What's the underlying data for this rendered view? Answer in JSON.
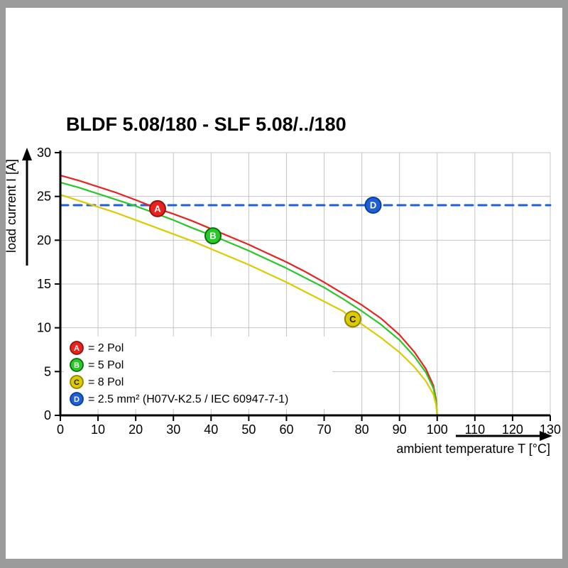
{
  "title": "BLDF 5.08/180 - SLF 5.08/../180",
  "axes": {
    "x": {
      "label": "ambient temperature T [°C]",
      "ticks": [
        0,
        10,
        20,
        30,
        40,
        50,
        60,
        70,
        80,
        90,
        100,
        110,
        120,
        130
      ]
    },
    "y": {
      "label": "load current I [A]",
      "ticks": [
        0,
        5,
        10,
        15,
        20,
        25,
        30
      ]
    }
  },
  "colors": {
    "grid": "#c4c4c4",
    "axis": "#000000",
    "page": "#ffffff",
    "frame": "#9b9b9b",
    "legend_bg": "#ffffff"
  },
  "chart_data": {
    "type": "line",
    "title": "BLDF 5.08/180 - SLF 5.08/../180",
    "xlabel": "ambient temperature T [°C]",
    "ylabel": "load current I [A]",
    "xlim": [
      0,
      130
    ],
    "ylim": [
      0,
      30
    ],
    "grid": true,
    "legend_position": "bottom-left-inside",
    "series": [
      {
        "key": "A",
        "name": "2 Pol",
        "legend_text": "= 2 Pol",
        "color": "#e8231f",
        "ring": "#8f1410",
        "letter_color": "#ffffff",
        "style": "solid",
        "points": [
          [
            0,
            27.4
          ],
          [
            5,
            26.8
          ],
          [
            10,
            26.1
          ],
          [
            15,
            25.4
          ],
          [
            20,
            24.6
          ],
          [
            25.8,
            23.6
          ],
          [
            30,
            23.0
          ],
          [
            35,
            22.2
          ],
          [
            40,
            21.3
          ],
          [
            45,
            20.4
          ],
          [
            50,
            19.5
          ],
          [
            55,
            18.5
          ],
          [
            60,
            17.5
          ],
          [
            65,
            16.4
          ],
          [
            70,
            15.2
          ],
          [
            75,
            13.9
          ],
          [
            80,
            12.6
          ],
          [
            85,
            11.1
          ],
          [
            90,
            9.2
          ],
          [
            94,
            7.2
          ],
          [
            97,
            5.3
          ],
          [
            99,
            3.4
          ],
          [
            99.7,
            1.8
          ],
          [
            100,
            0
          ]
        ]
      },
      {
        "key": "B",
        "name": "5 Pol",
        "legend_text": "= 5 Pol",
        "color": "#28c828",
        "ring": "#0c6e0c",
        "letter_color": "#ffffff",
        "style": "solid",
        "points": [
          [
            0,
            26.6
          ],
          [
            5,
            26.0
          ],
          [
            10,
            25.3
          ],
          [
            15,
            24.6
          ],
          [
            20,
            23.9
          ],
          [
            25,
            23.1
          ],
          [
            30,
            22.3
          ],
          [
            35,
            21.4
          ],
          [
            40.5,
            20.5
          ],
          [
            45,
            19.7
          ],
          [
            50,
            18.8
          ],
          [
            55,
            17.8
          ],
          [
            60,
            16.8
          ],
          [
            65,
            15.7
          ],
          [
            70,
            14.6
          ],
          [
            75,
            13.3
          ],
          [
            80,
            11.9
          ],
          [
            85,
            10.4
          ],
          [
            90,
            8.6
          ],
          [
            94,
            6.7
          ],
          [
            97,
            4.9
          ],
          [
            99,
            3.1
          ],
          [
            99.7,
            1.6
          ],
          [
            100,
            0
          ]
        ]
      },
      {
        "key": "C",
        "name": "8 Pol",
        "legend_text": "= 8 Pol",
        "color": "#ddca00",
        "ring": "#8f8400",
        "letter_color": "#1a1a1a",
        "style": "solid",
        "points": [
          [
            0,
            25.2
          ],
          [
            5,
            24.5
          ],
          [
            10,
            23.8
          ],
          [
            15,
            23.1
          ],
          [
            20,
            22.3
          ],
          [
            25,
            21.5
          ],
          [
            30,
            20.7
          ],
          [
            35,
            19.9
          ],
          [
            40,
            19.0
          ],
          [
            45,
            18.1
          ],
          [
            50,
            17.2
          ],
          [
            55,
            16.2
          ],
          [
            60,
            15.2
          ],
          [
            65,
            14.1
          ],
          [
            70,
            13.0
          ],
          [
            75,
            11.9
          ],
          [
            77.6,
            11.0
          ],
          [
            80,
            10.4
          ],
          [
            85,
            8.9
          ],
          [
            90,
            7.2
          ],
          [
            94,
            5.5
          ],
          [
            97,
            3.9
          ],
          [
            99,
            2.4
          ],
          [
            99.7,
            1.2
          ],
          [
            100,
            0
          ]
        ]
      },
      {
        "key": "D",
        "name": "2.5 mm² (H07V-K2.5 / IEC 60947-7-1)",
        "legend_text": "= 2.5 mm² (H07V-K2.5 / IEC 60947-7-1)",
        "color": "#1e5fd6",
        "ring": "#0a3f96",
        "letter_color": "#ffffff",
        "style": "dashed",
        "points": [
          [
            0,
            24
          ],
          [
            130,
            24
          ]
        ]
      }
    ],
    "markers": [
      {
        "series": "A",
        "x": 25.8,
        "y": 23.6
      },
      {
        "series": "B",
        "x": 40.5,
        "y": 20.5
      },
      {
        "series": "C",
        "x": 77.6,
        "y": 11.0
      },
      {
        "series": "D",
        "x": 83,
        "y": 24
      }
    ]
  }
}
